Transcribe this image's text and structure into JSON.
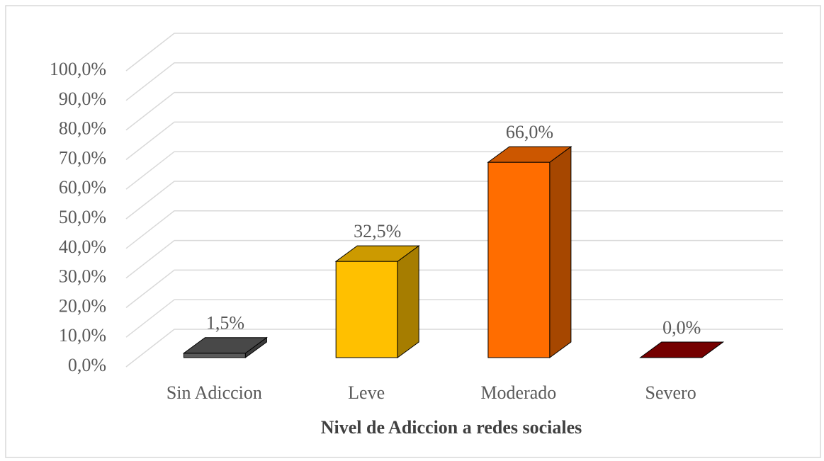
{
  "chart_data": {
    "type": "bar3d",
    "x_label": "Nivel de Adiccion a redes sociales",
    "categories": [
      "Sin Adiccion",
      "Leve",
      "Moderado",
      "Severo"
    ],
    "values": [
      1.5,
      32.5,
      66.0,
      0.0
    ],
    "value_labels": [
      "1,5%",
      "32,5%",
      "66,0%",
      "0,0%"
    ],
    "colors": [
      "#5a5a5a",
      "#ffc000",
      "#ff6d00",
      "#920000"
    ],
    "ylim": [
      0,
      100
    ],
    "yticks": [
      {
        "value": 0,
        "label": "0,0%"
      },
      {
        "value": 10,
        "label": "10,0%"
      },
      {
        "value": 20,
        "label": "20,0%"
      },
      {
        "value": 30,
        "label": "30,0%"
      },
      {
        "value": 40,
        "label": "40,0%"
      },
      {
        "value": 50,
        "label": "50,0%"
      },
      {
        "value": 60,
        "label": "60,0%"
      },
      {
        "value": 70,
        "label": "70,0%"
      },
      {
        "value": 80,
        "label": "80,0%"
      },
      {
        "value": 90,
        "label": "90,0%"
      },
      {
        "value": 100,
        "label": "100,0%"
      }
    ],
    "grid": true
  }
}
